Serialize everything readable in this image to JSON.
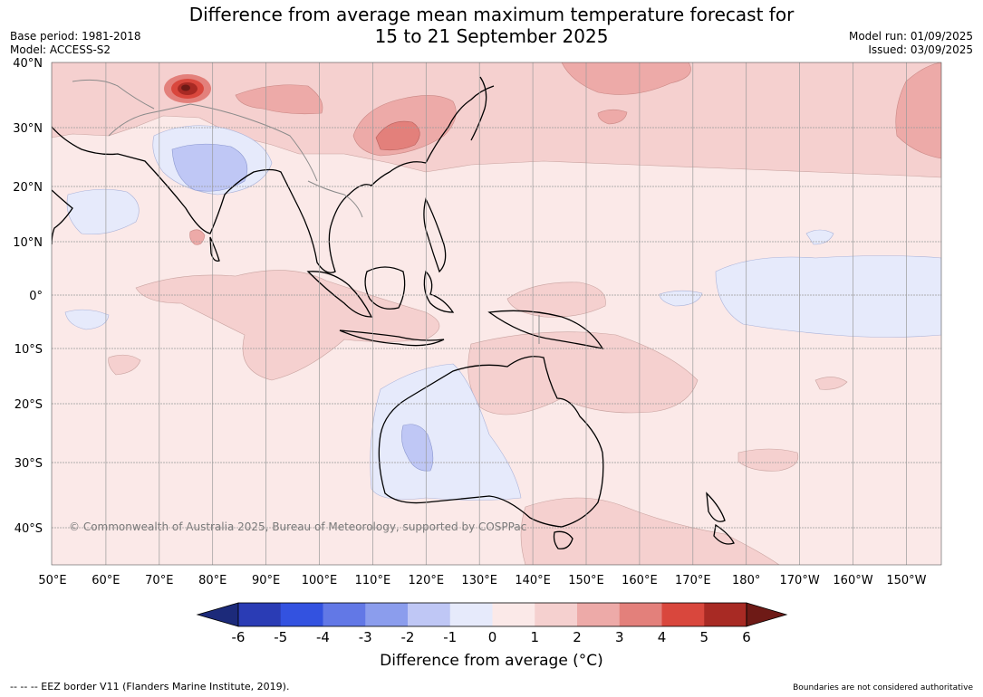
{
  "title": {
    "line1": "Difference from average mean maximum temperature forecast for",
    "line2": "15 to 21 September 2025"
  },
  "meta": {
    "base_period": "Base period: 1981-2018",
    "model": "Model: ACCESS-S2",
    "model_run": "Model run: 01/09/2025",
    "issued": "Issued: 03/09/2025"
  },
  "map": {
    "lat_labels": [
      "40°N",
      "30°N",
      "20°N",
      "10°N",
      "0°",
      "10°S",
      "20°S",
      "30°S",
      "40°S"
    ],
    "lon_labels": [
      "50°E",
      "60°E",
      "70°E",
      "80°E",
      "90°E",
      "100°E",
      "110°E",
      "120°E",
      "130°E",
      "140°E",
      "150°E",
      "160°E",
      "170°E",
      "180°",
      "170°W",
      "160°W",
      "150°W"
    ],
    "copyright": "© Commonwealth of Australia 2025, Bureau of Meteorology, supported by COSPPac"
  },
  "colorbar": {
    "tick_labels": [
      "-6",
      "-5",
      "-4",
      "-3",
      "-2",
      "-1",
      "0",
      "1",
      "2",
      "3",
      "4",
      "5",
      "6"
    ],
    "colors": [
      "#1c2a7a",
      "#2a3cb5",
      "#3352e0",
      "#6278e6",
      "#8b9ded",
      "#bfc7f5",
      "#e6eafb",
      "#fbe9e8",
      "#f5d0cf",
      "#edaaa8",
      "#e3807b",
      "#d9473d",
      "#a82a24",
      "#6e1a16"
    ],
    "label": "Difference from average (°C)"
  },
  "footer": {
    "eez": "--  --  -- EEZ border V11 (Flanders Marine Institute, 2019).",
    "disclaimer": "Boundaries are not considered authoritative"
  }
}
